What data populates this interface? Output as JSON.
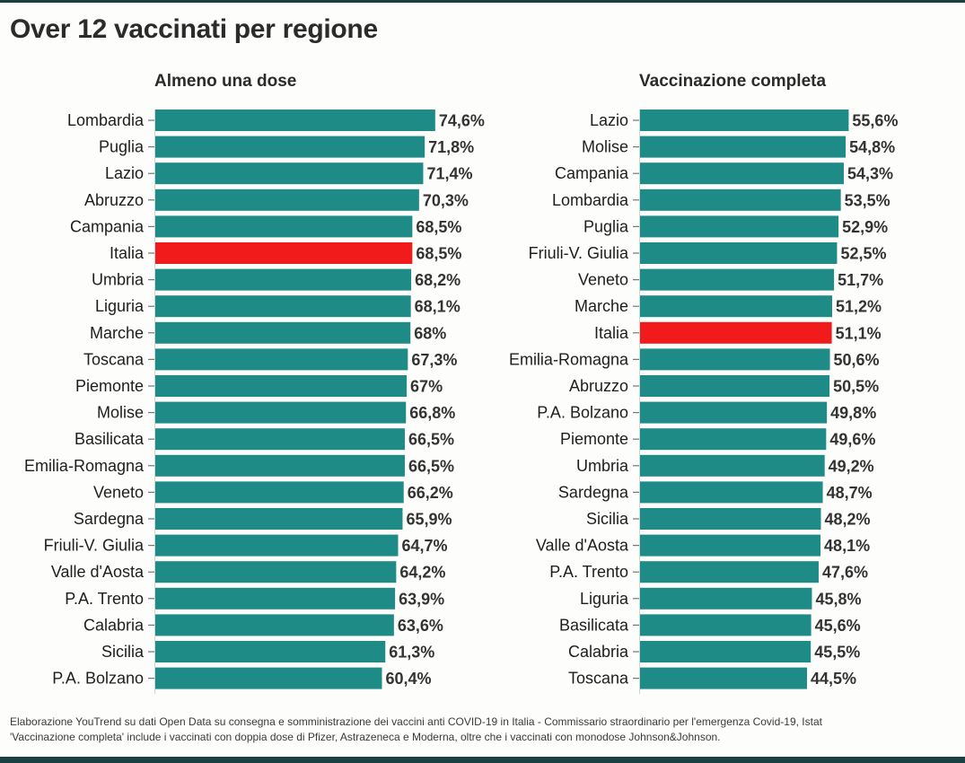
{
  "chart_data": [
    {
      "type": "bar",
      "orientation": "horizontal",
      "title": "Almeno una dose",
      "xlabel": "",
      "ylabel": "",
      "unit": "%",
      "xlim": [
        0,
        80
      ],
      "grid": false,
      "highlight": "Italia",
      "categories": [
        "Lombardia",
        "Puglia",
        "Lazio",
        "Abruzzo",
        "Campania",
        "Italia",
        "Umbria",
        "Liguria",
        "Marche",
        "Toscana",
        "Piemonte",
        "Molise",
        "Basilicata",
        "Emilia-Romagna",
        "Veneto",
        "Sardegna",
        "Friuli-V. Giulia",
        "Valle d'Aosta",
        "P.A. Trento",
        "Calabria",
        "Sicilia",
        "P.A. Bolzano"
      ],
      "values": [
        74.6,
        71.8,
        71.4,
        70.3,
        68.5,
        68.5,
        68.2,
        68.1,
        68.0,
        67.3,
        67.0,
        66.8,
        66.5,
        66.5,
        66.2,
        65.9,
        64.7,
        64.2,
        63.9,
        63.6,
        61.3,
        60.4
      ],
      "labels": [
        "74,6%",
        "71,8%",
        "71,4%",
        "70,3%",
        "68,5%",
        "68,5%",
        "68,2%",
        "68,1%",
        "68%",
        "67,3%",
        "67%",
        "66,8%",
        "66,5%",
        "66,5%",
        "66,2%",
        "65,9%",
        "64,7%",
        "64,2%",
        "63,9%",
        "63,6%",
        "61,3%",
        "60,4%"
      ]
    },
    {
      "type": "bar",
      "orientation": "horizontal",
      "title": "Vaccinazione completa",
      "xlabel": "",
      "ylabel": "",
      "unit": "%",
      "xlim": [
        0,
        80
      ],
      "grid": false,
      "highlight": "Italia",
      "categories": [
        "Lazio",
        "Molise",
        "Campania",
        "Lombardia",
        "Puglia",
        "Friuli-V. Giulia",
        "Veneto",
        "Marche",
        "Italia",
        "Emilia-Romagna",
        "Abruzzo",
        "P.A. Bolzano",
        "Piemonte",
        "Umbria",
        "Sardegna",
        "Sicilia",
        "Valle d'Aosta",
        "P.A. Trento",
        "Liguria",
        "Basilicata",
        "Calabria",
        "Toscana"
      ],
      "values": [
        55.6,
        54.8,
        54.3,
        53.5,
        52.9,
        52.5,
        51.7,
        51.2,
        51.1,
        50.6,
        50.5,
        49.8,
        49.6,
        49.2,
        48.7,
        48.2,
        48.1,
        47.6,
        45.8,
        45.6,
        45.5,
        44.5
      ],
      "labels": [
        "55,6%",
        "54,8%",
        "54,3%",
        "53,5%",
        "52,9%",
        "52,5%",
        "51,7%",
        "51,2%",
        "51,1%",
        "50,6%",
        "50,5%",
        "49,8%",
        "49,6%",
        "49,2%",
        "48,7%",
        "48,2%",
        "48,1%",
        "47,6%",
        "45,8%",
        "45,6%",
        "45,5%",
        "44,5%"
      ]
    }
  ],
  "header": {
    "title": "Over 12 vaccinati per regione"
  },
  "colors": {
    "bar": "#1f8b86",
    "highlight": "#f21b1b",
    "band": "#1a4042"
  },
  "footnote": {
    "line1": "Elaborazione YouTrend su dati Open Data su consegna e somministrazione dei vaccini anti COVID-19 in Italia - Commissario straordinario per l'emergenza Covid-19, Istat",
    "line2": "'Vaccinazione completa' include i vaccinati con doppia dose di Pfizer, Astrazeneca e Moderna, oltre che i vaccinati con monodose Johnson&Johnson."
  }
}
